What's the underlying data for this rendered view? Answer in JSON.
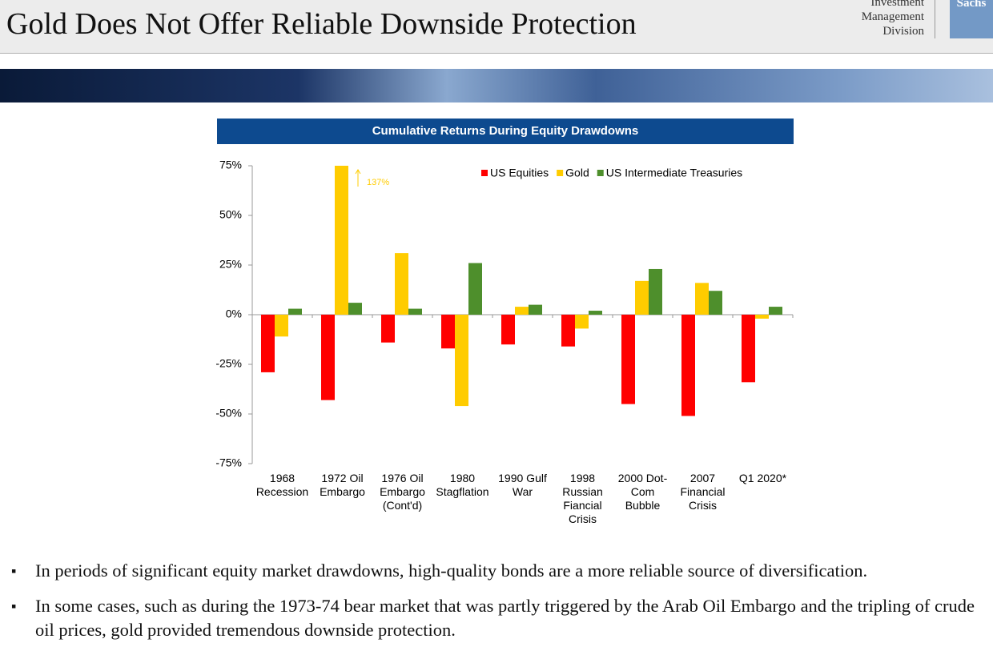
{
  "header": {
    "title": "Gold Does Not Offer Reliable Downside Protection",
    "logo_lines": [
      "Investment",
      "Management",
      "Division"
    ],
    "logo_mark": "Sachs"
  },
  "chart_data": {
    "type": "bar",
    "title": "Cumulative Returns During Equity Drawdowns",
    "categories": [
      "1968 Recession",
      "1972 Oil Embargo",
      "1976 Oil Embargo (Cont'd)",
      "1980 Stagflation",
      "1990 Gulf War",
      "1998 Russian Fiancial Crisis",
      "2000 Dot-Com Bubble",
      "2007 Financial Crisis",
      "Q1 2020*"
    ],
    "series": [
      {
        "name": "US Equities",
        "color": "#ff0000",
        "values": [
          -29,
          -43,
          -14,
          -17,
          -15,
          -16,
          -45,
          -51,
          -34
        ]
      },
      {
        "name": "Gold",
        "color": "#ffcc00",
        "values": [
          -11,
          137,
          31,
          -46,
          4,
          -7,
          17,
          16,
          -2
        ],
        "value_labels": [
          null,
          "137%",
          null,
          null,
          null,
          null,
          null,
          null,
          null
        ]
      },
      {
        "name": "US Intermediate Treasuries",
        "color": "#4e8f2c",
        "values": [
          3,
          6,
          3,
          26,
          5,
          2,
          23,
          12,
          4
        ]
      }
    ],
    "ylim": [
      -75,
      75
    ],
    "yticks": [
      {
        "value": 75,
        "label": "75%"
      },
      {
        "value": 50,
        "label": "50%"
      },
      {
        "value": 25,
        "label": "25%"
      },
      {
        "value": 0,
        "label": "0%"
      },
      {
        "value": -25,
        "label": "-25%"
      },
      {
        "value": -50,
        "label": "-50%"
      },
      {
        "value": -75,
        "label": "-75%"
      }
    ],
    "legend": "top-right"
  },
  "bullets": [
    "In periods of significant equity market drawdowns, high-quality bonds are a more reliable source of diversification.",
    "In some cases, such as during the 1973-74 bear market that was partly triggered by the Arab Oil Embargo and the tripling of crude oil prices, gold provided tremendous downside protection."
  ]
}
